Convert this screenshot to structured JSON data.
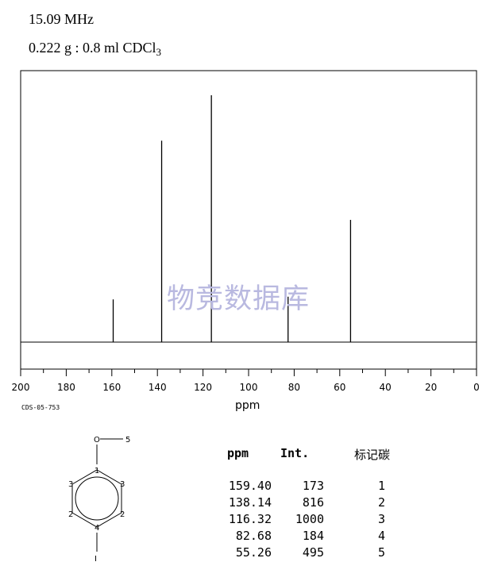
{
  "header": {
    "frequency": "15.09 MHz",
    "sample_main": "0.222 g : 0.8 ml CDCl",
    "sample_sub": "3"
  },
  "code": "CDS-05-753",
  "watermark": "物竞数据库",
  "chart_data": {
    "type": "bar",
    "xlabel": "ppm",
    "xlim": [
      200,
      0
    ],
    "xticks": [
      200,
      180,
      160,
      140,
      120,
      100,
      80,
      60,
      40,
      20,
      0
    ],
    "x": [
      159.4,
      138.14,
      116.32,
      82.68,
      55.26
    ],
    "values": [
      173,
      816,
      1000,
      184,
      495
    ],
    "ylim": [
      0,
      1000
    ]
  },
  "table": {
    "headers": {
      "ppm": "ppm",
      "int": "Int.",
      "carbon": "标记碳"
    },
    "rows": [
      {
        "ppm": "159.40",
        "int": "173",
        "c": "1"
      },
      {
        "ppm": "138.14",
        "int": "816",
        "c": "2"
      },
      {
        "ppm": "116.32",
        "int": "1000",
        "c": "3"
      },
      {
        "ppm": "82.68",
        "int": "184",
        "c": "4"
      },
      {
        "ppm": "55.26",
        "int": "495",
        "c": "5"
      }
    ]
  },
  "molecule": {
    "o": "O",
    "methyl": "5",
    "c1": "1",
    "c2l": "2",
    "c2r": "2",
    "c3l": "3",
    "c3r": "3",
    "c4": "4",
    "iodine": "I"
  }
}
